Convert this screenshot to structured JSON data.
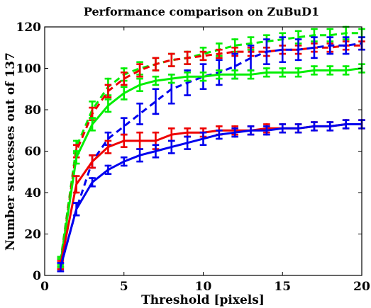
{
  "chart_data": {
    "type": "line",
    "title": "Performance comparison on ZuBuD1",
    "xlabel": "Threshold [pixels]",
    "ylabel": "Number successes out of 137",
    "xlim": [
      0,
      20
    ],
    "ylim": [
      0,
      120
    ],
    "xticks": [
      0,
      5,
      10,
      15,
      20
    ],
    "yticks": [
      0,
      20,
      40,
      60,
      80,
      100,
      120
    ],
    "grid": false,
    "x": [
      1,
      2,
      3,
      4,
      5,
      6,
      7,
      8,
      9,
      10,
      11,
      12,
      13,
      14,
      15,
      16,
      17,
      18,
      19,
      20
    ],
    "series": [
      {
        "color": "#00ee00",
        "style": "dashed",
        "values": [
          7,
          62,
          80,
          91,
          97,
          100,
          102,
          104,
          105,
          107,
          109,
          111,
          112,
          113,
          114,
          115,
          116,
          116,
          117,
          117
        ],
        "errors": [
          2,
          3,
          4,
          4,
          3,
          3,
          3,
          3,
          3,
          3,
          3,
          3,
          3,
          3,
          3,
          3,
          3,
          3,
          3,
          2
        ]
      },
      {
        "color": "#ee0000",
        "style": "dashed",
        "values": [
          6,
          60,
          78,
          89,
          95,
          99,
          102,
          104,
          105,
          106,
          107,
          108,
          108,
          108,
          109,
          109,
          110,
          110,
          111,
          111
        ],
        "errors": [
          2,
          3,
          3,
          3,
          3,
          3,
          3,
          3,
          3,
          2,
          2,
          2,
          2,
          2,
          2,
          2,
          2,
          2,
          2,
          2
        ]
      },
      {
        "color": "#0000ee",
        "style": "dashed",
        "values": [
          4,
          32,
          55,
          66,
          72,
          78,
          84,
          90,
          93,
          96,
          98,
          101,
          105,
          108,
          109,
          109,
          110,
          111,
          111,
          112
        ],
        "errors": [
          2,
          3,
          3,
          3,
          4,
          5,
          6,
          7,
          6,
          6,
          6,
          6,
          6,
          6,
          6,
          5,
          5,
          4,
          4,
          3
        ]
      },
      {
        "color": "#00ee00",
        "style": "solid",
        "values": [
          6,
          57,
          73,
          82,
          88,
          92,
          94,
          95,
          96,
          96,
          97,
          97,
          97,
          98,
          98,
          98,
          99,
          99,
          99,
          100
        ],
        "errors": [
          2,
          3,
          3,
          3,
          3,
          3,
          2,
          2,
          2,
          2,
          2,
          2,
          2,
          2,
          2,
          2,
          2,
          2,
          2,
          2
        ]
      },
      {
        "color": "#ee0000",
        "style": "solid",
        "values": [
          5,
          44,
          55,
          62,
          65,
          65,
          65,
          68,
          69,
          69,
          70,
          70,
          70,
          71,
          71,
          71,
          72,
          72,
          73,
          73
        ],
        "errors": [
          2,
          4,
          3,
          3,
          3,
          4,
          4,
          3,
          2,
          2,
          2,
          2,
          2,
          2,
          2,
          2,
          2,
          2,
          2,
          2
        ]
      },
      {
        "color": "#0000ee",
        "style": "solid",
        "values": [
          4,
          32,
          45,
          51,
          55,
          58,
          60,
          62,
          64,
          66,
          68,
          69,
          70,
          70,
          71,
          71,
          72,
          72,
          73,
          73
        ],
        "errors": [
          2,
          3,
          2,
          2,
          2,
          3,
          3,
          3,
          3,
          3,
          2,
          2,
          2,
          2,
          2,
          2,
          2,
          2,
          2,
          2
        ]
      }
    ]
  }
}
